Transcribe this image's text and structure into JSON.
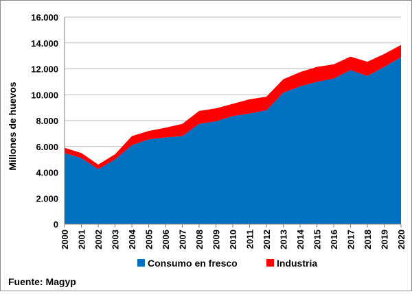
{
  "chart_data": {
    "type": "area",
    "stacked": true,
    "title": "",
    "xlabel": "",
    "ylabel": "Millones de huevos",
    "ylim": [
      0,
      16000
    ],
    "yticks": [
      "0",
      "2.000",
      "4.000",
      "6.000",
      "8.000",
      "10.000",
      "12.000",
      "14.000",
      "16.000"
    ],
    "x": [
      "2000",
      "2001",
      "2002",
      "2003",
      "2004",
      "2005",
      "2006",
      "2007",
      "2008",
      "2009",
      "2010",
      "2011",
      "2012",
      "2013",
      "2014",
      "2015",
      "2016",
      "2017",
      "2018",
      "2019",
      "2020"
    ],
    "series": [
      {
        "name": "Consumo en fresco",
        "color": "#0070c0",
        "values": [
          5500,
          5100,
          4250,
          5000,
          6100,
          6550,
          6700,
          6800,
          7750,
          7950,
          8350,
          8550,
          8800,
          10150,
          10650,
          11000,
          11250,
          11900,
          11450,
          12150,
          12900
        ]
      },
      {
        "name": "Industria",
        "color": "#ff0000",
        "values": [
          400,
          400,
          350,
          400,
          700,
          650,
          750,
          950,
          1000,
          1000,
          950,
          1100,
          1050,
          1050,
          1100,
          1150,
          1100,
          1050,
          1100,
          1000,
          950
        ]
      }
    ],
    "grid": "horizontal",
    "legend_position": "bottom"
  },
  "source_text": "Fuente: Magyp"
}
